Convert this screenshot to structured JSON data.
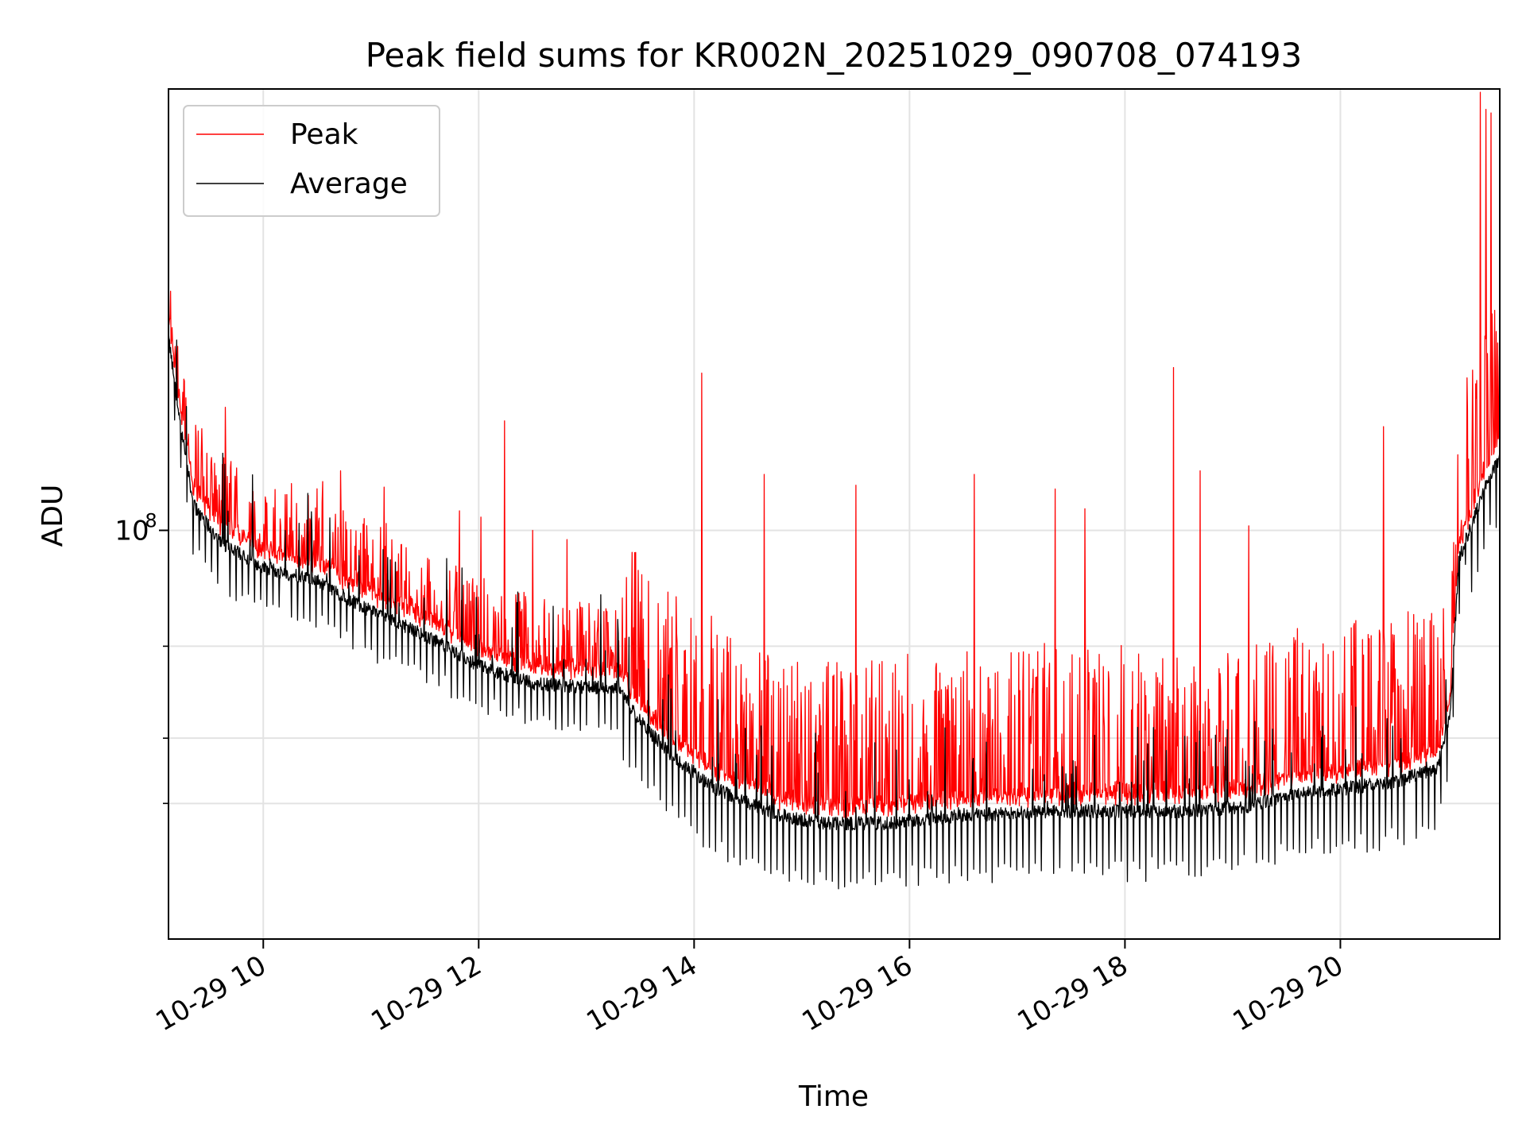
{
  "chart_data": {
    "type": "line",
    "title": "Peak field sums for KR002N_20251029_090708_074193",
    "xlabel": "Time",
    "ylabel": "ADU",
    "yscale": "log",
    "xlim": [
      9.12,
      21.48
    ],
    "ylim": [
      16500000,
      700000000
    ],
    "grid": true,
    "legend_position": "upper-left",
    "x_ticks": [
      {
        "value": 10,
        "label": "10-29 10"
      },
      {
        "value": 12,
        "label": "10-29 12"
      },
      {
        "value": 14,
        "label": "10-29 14"
      },
      {
        "value": 16,
        "label": "10-29 16"
      },
      {
        "value": 18,
        "label": "10-29 18"
      },
      {
        "value": 20,
        "label": "10-29 20"
      }
    ],
    "y_ticks": [
      {
        "value": 100000000,
        "base": "10",
        "exponent": "8"
      }
    ],
    "y_minor_ticks": [
      30000000,
      40000000,
      60000000
    ],
    "baseline_anchors": [
      [
        9.12,
        235000000
      ],
      [
        9.2,
        175000000
      ],
      [
        9.35,
        112000000
      ],
      [
        9.6,
        95000000
      ],
      [
        10.0,
        85000000
      ],
      [
        10.5,
        80000000
      ],
      [
        11.0,
        70000000
      ],
      [
        11.5,
        63000000
      ],
      [
        12.0,
        55000000
      ],
      [
        12.5,
        51000000
      ],
      [
        13.0,
        50000000
      ],
      [
        13.3,
        50000000
      ],
      [
        13.5,
        43000000
      ],
      [
        13.8,
        37000000
      ],
      [
        14.2,
        32000000
      ],
      [
        14.8,
        28500000
      ],
      [
        15.2,
        27500000
      ],
      [
        15.8,
        27500000
      ],
      [
        16.5,
        28500000
      ],
      [
        17.5,
        29000000
      ],
      [
        18.5,
        29000000
      ],
      [
        19.1,
        29500000
      ],
      [
        19.5,
        31000000
      ],
      [
        20.5,
        33000000
      ],
      [
        20.9,
        35000000
      ],
      [
        21.02,
        45000000
      ],
      [
        21.1,
        88000000
      ],
      [
        21.35,
        122000000
      ],
      [
        21.48,
        138000000
      ]
    ],
    "series": [
      {
        "name": "Peak",
        "color": "#ff0000",
        "spikes": [
          [
            9.12,
            280000000
          ],
          [
            9.65,
            172000000
          ],
          [
            10.55,
            124000000
          ],
          [
            10.72,
            130000000
          ],
          [
            11.12,
            121000000
          ],
          [
            11.82,
            109000000
          ],
          [
            12.02,
            106000000
          ],
          [
            12.24,
            162000000
          ],
          [
            12.5,
            100000000
          ],
          [
            12.82,
            96000000
          ],
          [
            14.07,
            200000000
          ],
          [
            14.65,
            128000000
          ],
          [
            15.5,
            122000000
          ],
          [
            16.6,
            128000000
          ],
          [
            17.35,
            120000000
          ],
          [
            17.63,
            110000000
          ],
          [
            18.45,
            205000000
          ],
          [
            18.7,
            130000000
          ],
          [
            19.15,
            102000000
          ],
          [
            20.4,
            158000000
          ],
          [
            21.3,
            690000000
          ],
          [
            21.35,
            640000000
          ],
          [
            21.4,
            630000000
          ]
        ]
      },
      {
        "name": "Average",
        "color": "#000000",
        "spikes": [
          [
            9.12,
            240000000
          ],
          [
            21.35,
            120000000
          ]
        ]
      }
    ]
  }
}
